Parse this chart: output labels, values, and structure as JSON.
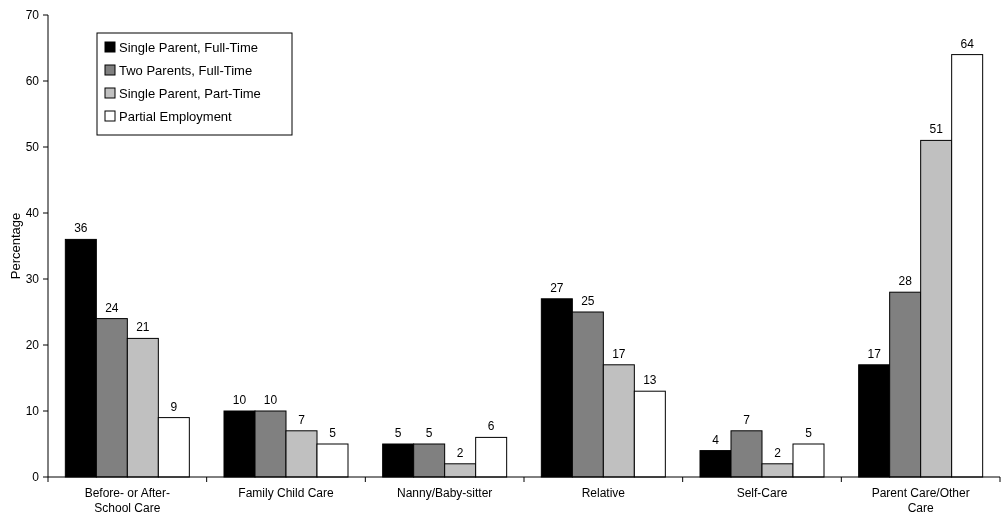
{
  "chart_data": {
    "type": "bar",
    "ylabel": "Percentage",
    "categories": [
      "Before- or After-School Care",
      "Family Child Care",
      "Nanny/Baby-sitter",
      "Relative",
      "Self-Care",
      "Parent Care/Other Care"
    ],
    "series": [
      {
        "name": "Single Parent, Full-Time",
        "color": "#000000",
        "values": [
          36,
          10,
          5,
          27,
          4,
          17
        ]
      },
      {
        "name": "Two Parents, Full-Time",
        "color": "#808080",
        "values": [
          24,
          10,
          5,
          25,
          7,
          28
        ]
      },
      {
        "name": "Single Parent, Part-Time",
        "color": "#c0c0c0",
        "values": [
          21,
          7,
          2,
          17,
          2,
          51
        ]
      },
      {
        "name": "Partial Employment",
        "color": "#ffffff",
        "values": [
          9,
          5,
          6,
          13,
          5,
          64
        ]
      }
    ],
    "ylim": [
      0,
      70
    ],
    "yticks": [
      0,
      10,
      20,
      30,
      40,
      50,
      60,
      70
    ],
    "data_labels": true,
    "legend": "top left"
  }
}
